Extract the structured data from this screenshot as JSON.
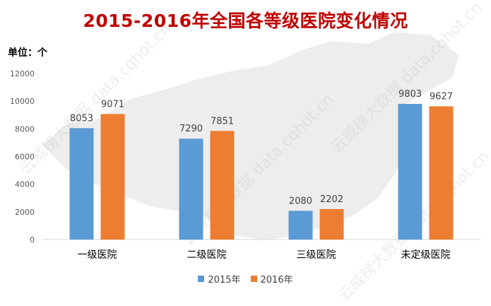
{
  "title": "2015-2016年全国各等级医院变化情况",
  "unit_label": "单位：个",
  "watermark_text": "云威榜大数据 data.cqhot.cn",
  "colors": {
    "title": "#C00000",
    "series_2015": "#5B9BD5",
    "series_2016": "#ED7D31",
    "axis_text": "#595959",
    "axis_line": "#D9D9D9"
  },
  "chart_data": {
    "type": "bar",
    "title": "2015-2016年全国各等级医院变化情况",
    "ylabel": "单位：个",
    "xlabel": "",
    "categories": [
      "一级医院",
      "二级医院",
      "三级医院",
      "未定级医院"
    ],
    "series": [
      {
        "name": "2015年",
        "values": [
          8053,
          7290,
          2080,
          9803
        ],
        "color": "#5B9BD5"
      },
      {
        "name": "2016年",
        "values": [
          9071,
          7851,
          2202,
          9627
        ],
        "color": "#ED7D31"
      }
    ],
    "ylim": [
      0,
      12000
    ],
    "yticks": [
      0,
      2000,
      4000,
      6000,
      8000,
      10000,
      12000
    ],
    "grid": false,
    "legend_position": "bottom",
    "data_labels": true
  }
}
